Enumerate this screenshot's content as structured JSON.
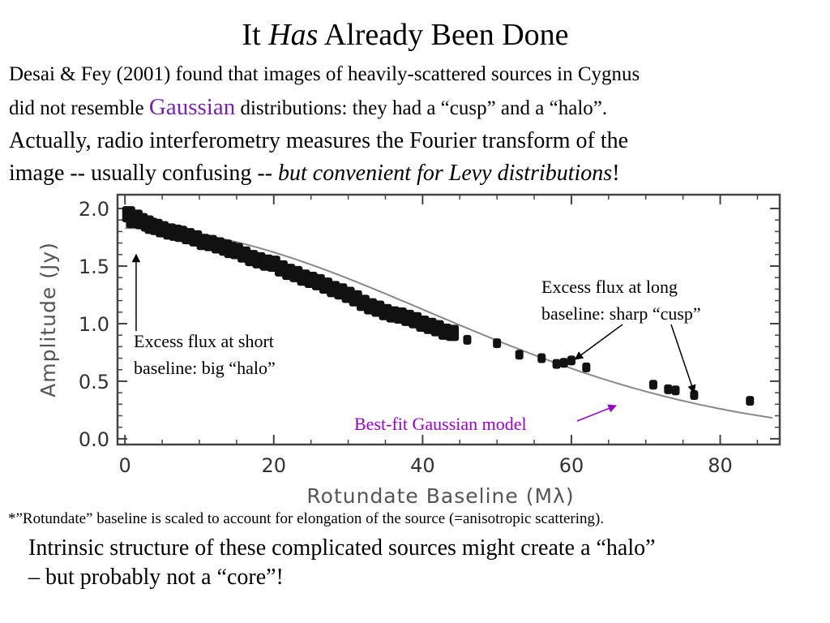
{
  "slide": {
    "title": {
      "pre": "It ",
      "emph": "Has",
      "post": " Already Been Done"
    },
    "intro": {
      "line1": "Desai & Fey (2001) found that images of heavily-scattered sources in Cygnus",
      "line2_pre": "did not resemble ",
      "line2_highlight": "Gaussian",
      "line2_post": " distributions: they had a “cusp” and a “halo”.",
      "line3": "Actually, radio interferometry measures the Fourier transform of the",
      "line4_pre": "image -- usually confusing -- ",
      "line4_emph": "but convenient for Levy distributions",
      "line4_post": "!"
    },
    "footnote": "*”Rotundate” baseline is scaled to account for elongation of the source (=anisotropic scattering).",
    "conclusion": {
      "line1": "Intrinsic structure of these complicated sources might create a “halo”",
      "line2": "– but probably not a “core”!"
    },
    "colors": {
      "highlight": "#7a1fb3",
      "fit_label": "#9900cc",
      "data_points": "#111111",
      "fit_curve": "#888888"
    }
  },
  "chart_data": {
    "type": "scatter",
    "xlabel": "Rotundate Baseline (Mλ)",
    "ylabel": "Amplitude (Jy)",
    "xlim": [
      -1,
      88
    ],
    "ylim": [
      -0.05,
      2.12
    ],
    "xticks": [
      0,
      20,
      40,
      60,
      80
    ],
    "xtick_labels": [
      "0",
      "20",
      "40",
      "60",
      "80"
    ],
    "yticks": [
      0.0,
      0.5,
      1.0,
      1.5,
      2.0
    ],
    "ytick_labels": [
      "0.0",
      "0.5",
      "1.0",
      "1.5",
      "2.0"
    ],
    "grid": false,
    "series": [
      {
        "kind": "points",
        "points": [
          [
            0.5,
            1.95
          ],
          [
            1.0,
            1.9
          ],
          [
            1.5,
            1.92
          ],
          [
            2.2,
            1.89
          ],
          [
            3.0,
            1.87
          ],
          [
            3.5,
            1.85
          ],
          [
            4.2,
            1.84
          ],
          [
            5.0,
            1.82
          ],
          [
            6.0,
            1.8
          ],
          [
            6.8,
            1.79
          ],
          [
            7.5,
            1.78
          ],
          [
            8.5,
            1.76
          ],
          [
            9.5,
            1.74
          ],
          [
            10.5,
            1.71
          ],
          [
            11.5,
            1.7
          ],
          [
            12.5,
            1.68
          ],
          [
            13.5,
            1.66
          ],
          [
            14.2,
            1.64
          ],
          [
            15.0,
            1.63
          ],
          [
            16.0,
            1.6
          ],
          [
            17.0,
            1.57
          ],
          [
            18.0,
            1.55
          ],
          [
            19.0,
            1.53
          ],
          [
            20.0,
            1.52
          ],
          [
            21.0,
            1.48
          ],
          [
            22.0,
            1.45
          ],
          [
            23.0,
            1.43
          ],
          [
            24.0,
            1.4
          ],
          [
            25.0,
            1.38
          ],
          [
            26.0,
            1.36
          ],
          [
            27.0,
            1.33
          ],
          [
            28.0,
            1.3
          ],
          [
            29.0,
            1.28
          ],
          [
            30.0,
            1.25
          ],
          [
            31.0,
            1.22
          ],
          [
            32.0,
            1.18
          ],
          [
            33.0,
            1.15
          ],
          [
            34.0,
            1.13
          ],
          [
            35.0,
            1.1
          ],
          [
            36.0,
            1.08
          ],
          [
            37.0,
            1.07
          ],
          [
            38.0,
            1.05
          ],
          [
            39.0,
            1.03
          ],
          [
            40.0,
            1.0
          ],
          [
            41.0,
            0.98
          ],
          [
            42.0,
            0.96
          ],
          [
            43.0,
            0.93
          ],
          [
            44.0,
            0.92
          ],
          [
            46.0,
            0.86
          ],
          [
            50.0,
            0.83
          ],
          [
            53.0,
            0.73
          ],
          [
            56.0,
            0.7
          ],
          [
            58.0,
            0.65
          ],
          [
            59.0,
            0.66
          ],
          [
            60.0,
            0.68
          ],
          [
            62.0,
            0.62
          ],
          [
            71.0,
            0.47
          ],
          [
            73.0,
            0.43
          ],
          [
            74.0,
            0.42
          ],
          [
            76.5,
            0.38
          ],
          [
            84.0,
            0.33
          ]
        ]
      },
      {
        "name": "Best-fit Gaussian model",
        "kind": "gaussian",
        "amplitude": 1.83,
        "sigma": 40.5
      }
    ],
    "annotations": {
      "short_baseline": [
        "Excess flux at short",
        "baseline: big “halo”"
      ],
      "long_baseline": [
        "Excess flux at long",
        "baseline: sharp “cusp”"
      ],
      "fit": "Best-fit Gaussian model"
    }
  }
}
